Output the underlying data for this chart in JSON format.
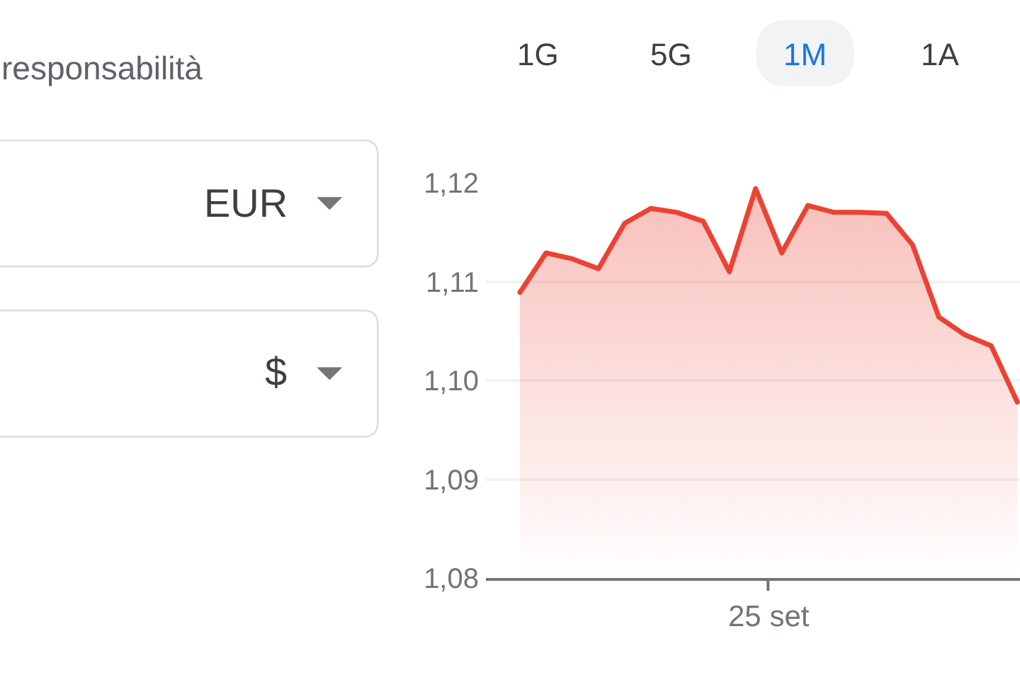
{
  "chart_data": {
    "type": "area",
    "categories": [
      null,
      null,
      null,
      null,
      null,
      null,
      null,
      null,
      null,
      null,
      null,
      null,
      null,
      null,
      null,
      null,
      null,
      null,
      null,
      null
    ],
    "ylim": [
      1.08,
      1.12
    ],
    "yticks": [
      {
        "value": 1.08,
        "label": "1,08"
      },
      {
        "value": 1.09,
        "label": "1,09"
      },
      {
        "value": 1.1,
        "label": "1,10"
      },
      {
        "value": 1.11,
        "label": "1,11"
      },
      {
        "value": 1.12,
        "label": "1,12"
      }
    ],
    "series": [
      {
        "color": "#ea4335",
        "values": [
          1.1089,
          1.1129,
          1.1123,
          1.1113,
          1.1159,
          1.1174,
          1.117,
          1.1161,
          1.111,
          1.1194,
          1.1129,
          1.1177,
          1.117,
          1.117,
          1.1169,
          1.1137,
          1.1064,
          1.1046,
          1.1035,
          1.0978
        ]
      }
    ],
    "grid": "y",
    "annotations": [
      "responsabilità",
      "1G",
      "5G",
      "1M",
      "1A",
      "EUR",
      "$",
      "25 set"
    ]
  }
}
